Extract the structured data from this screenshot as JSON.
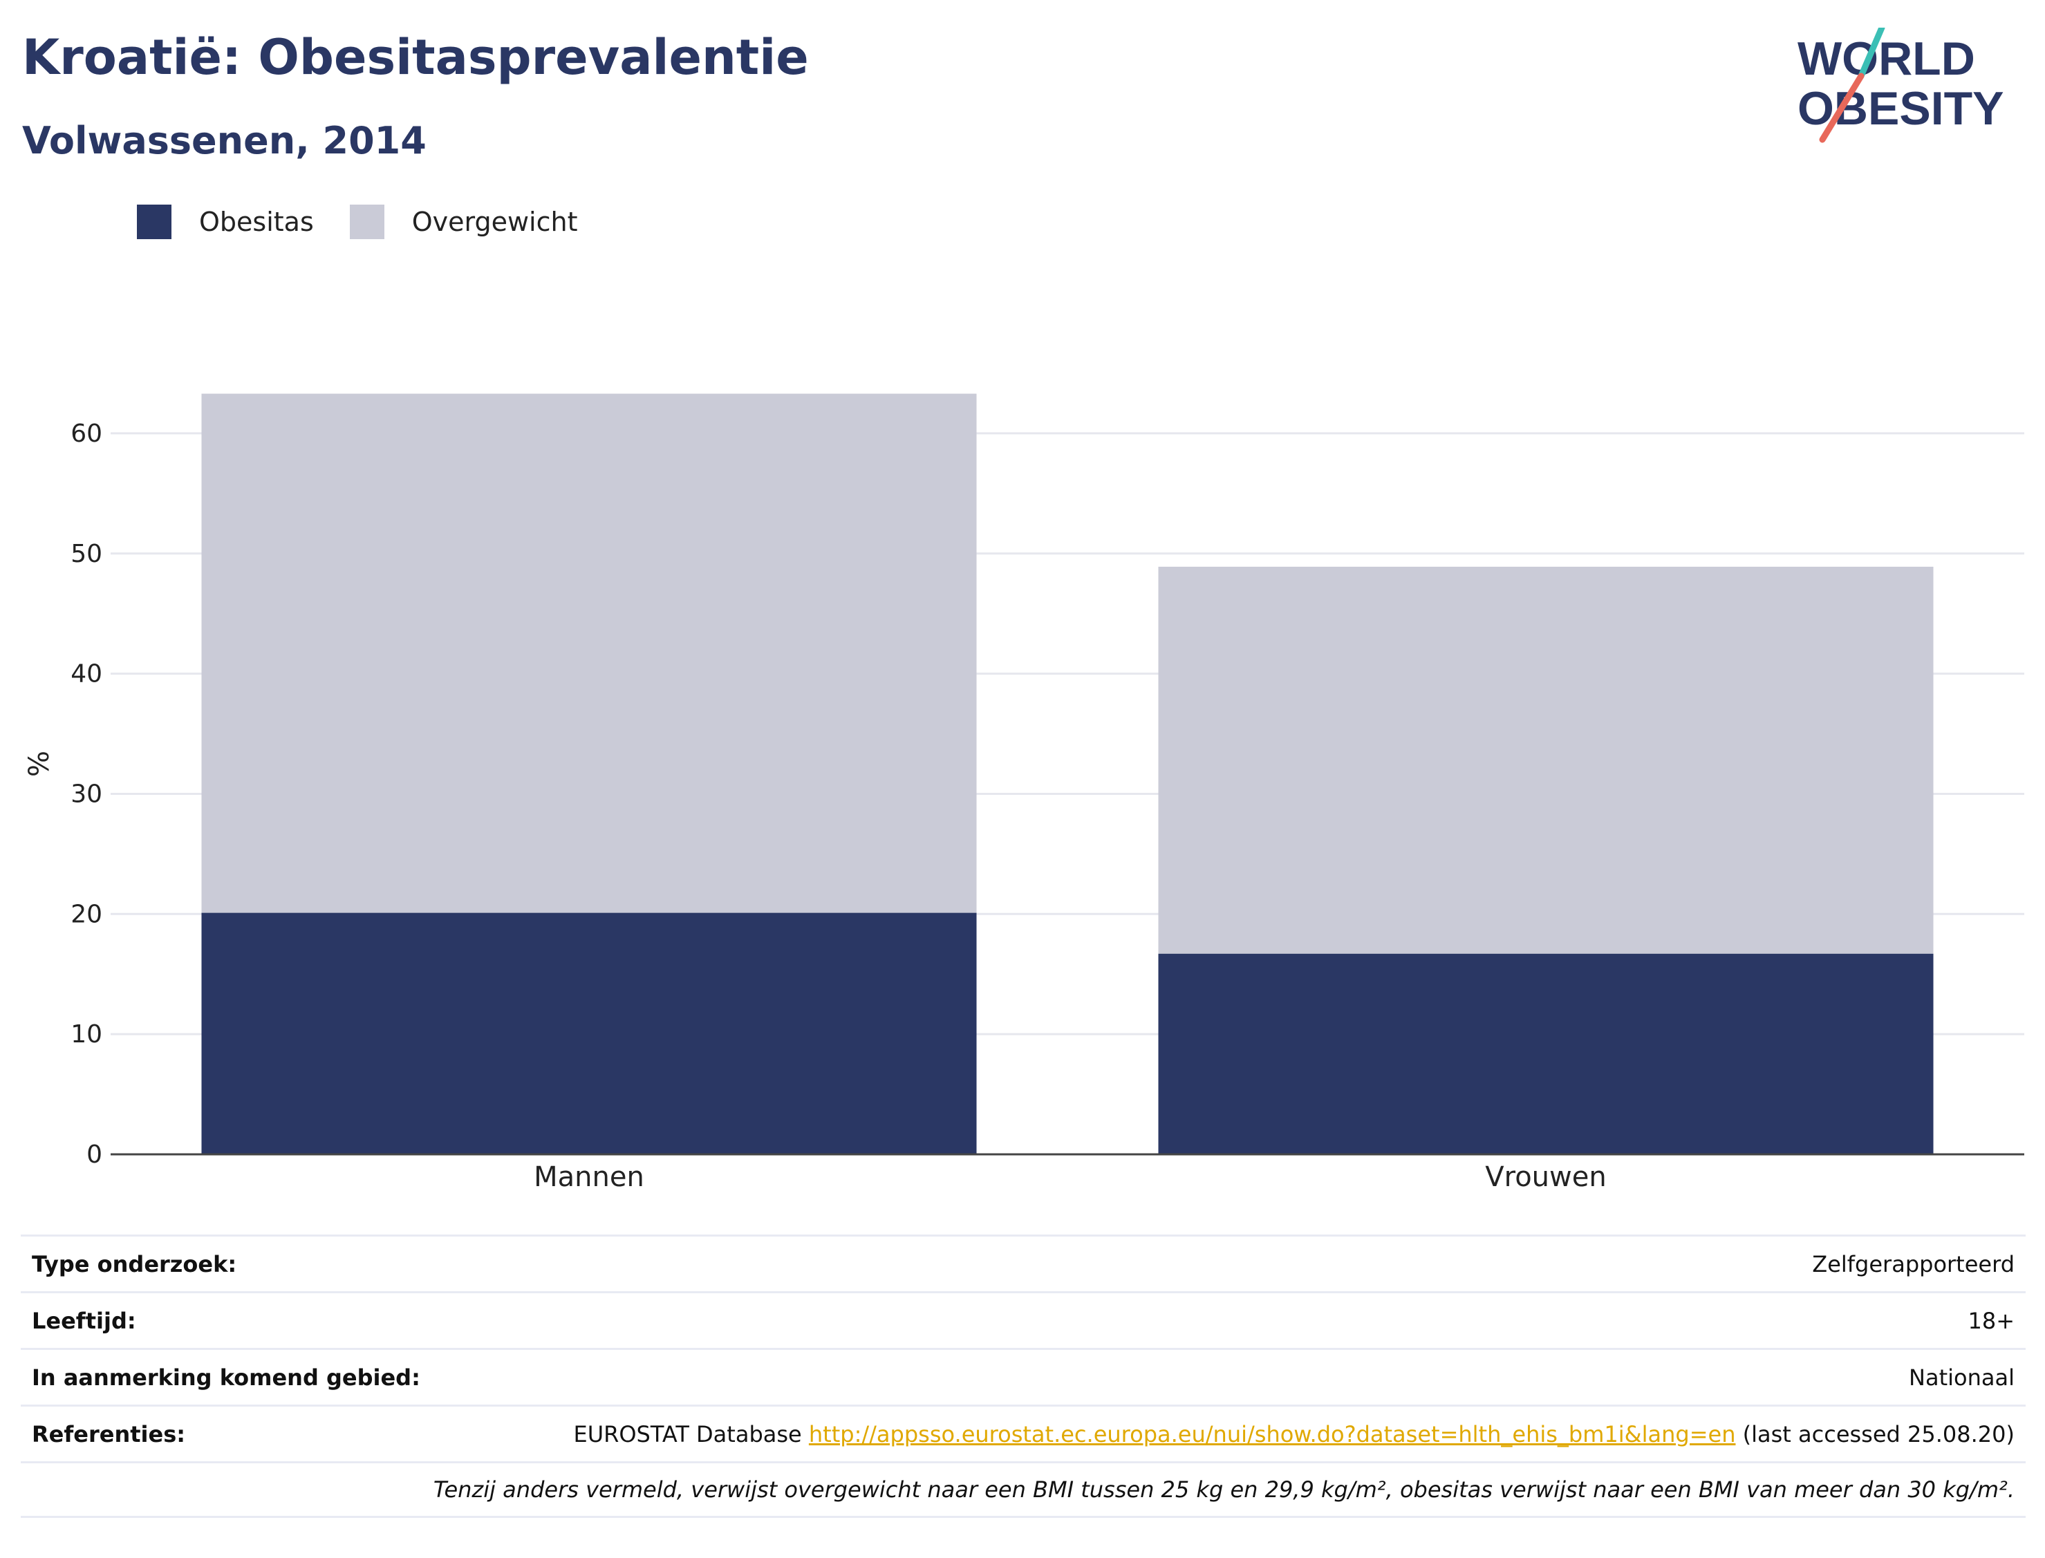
{
  "header": {
    "title": "Kroatië: Obesitasprevalentie",
    "subtitle": "Volwassenen, 2014"
  },
  "logo": {
    "line1": "WORLD",
    "line2": "OBESITY",
    "icon": "world-obesity-logo-icon",
    "colors": {
      "text": "#2a3764",
      "slash_top": "#3bbfb5",
      "slash_bottom": "#e8685a"
    }
  },
  "legend": [
    {
      "label": "Obesitas",
      "color": "#2a3764"
    },
    {
      "label": "Overgewicht",
      "color": "#cacbd7"
    }
  ],
  "chart_data": {
    "type": "bar",
    "stacked": true,
    "categories": [
      "Mannen",
      "Vrouwen"
    ],
    "series": [
      {
        "name": "Obesitas",
        "values": [
          20.1,
          16.7
        ],
        "color": "#2a3764"
      },
      {
        "name": "Overgewicht",
        "values": [
          43.2,
          32.2
        ],
        "color": "#cacbd7"
      }
    ],
    "ylabel": "%",
    "ylim": [
      0,
      65
    ],
    "yticks": [
      0,
      10,
      20,
      30,
      40,
      50,
      60
    ],
    "grid": true,
    "legend_position": "top-left"
  },
  "info": {
    "rows": [
      {
        "key": "Type onderzoek:",
        "value": "Zelfgerapporteerd"
      },
      {
        "key": "Leeftijd:",
        "value": "18+"
      },
      {
        "key": "In aanmerking komend gebied:",
        "value": "Nationaal"
      }
    ],
    "reference": {
      "key": "Referenties:",
      "prefix": "EUROSTAT Database ",
      "link": "http://appsso.eurostat.ec.europa.eu/nui/show.do?dataset=hlth_ehis_bm1i&lang=en",
      "suffix": " (last accessed 25.08.20)"
    },
    "note": "Tenzij anders vermeld, verwijst overgewicht naar een BMI tussen 25 kg en 29,9 kg/m², obesitas verwijst naar een BMI van meer dan 30 kg/m²."
  }
}
